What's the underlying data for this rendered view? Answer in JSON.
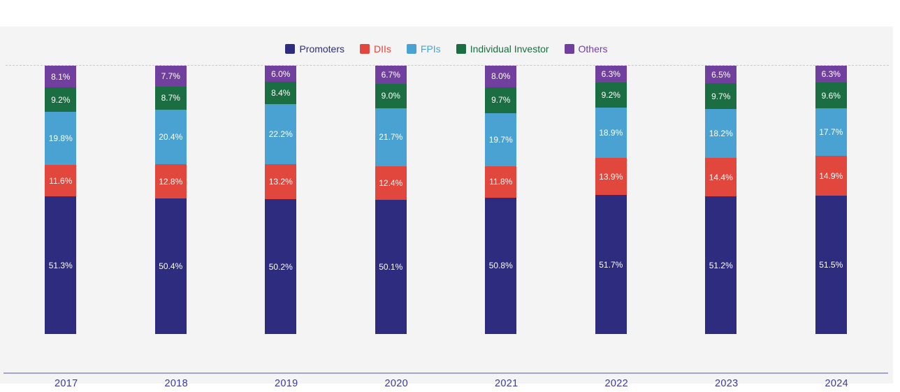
{
  "page": {
    "background": "#ffffff"
  },
  "chart": {
    "background": "#f4f4f5",
    "legend": {
      "position": "top-center",
      "items": [
        {
          "label": "Promoters",
          "color": "#2e2c7e"
        },
        {
          "label": "DIIs",
          "color": "#e2473d"
        },
        {
          "label": "FPIs",
          "color": "#4aa2d3"
        },
        {
          "label": "Individual Investor",
          "color": "#1a6e41"
        },
        {
          "label": "Others",
          "color": "#71409e"
        }
      ]
    },
    "axis": {
      "line_color": "#a5a3d2",
      "tick_label_color": "#3c3a96",
      "gridline_color": "#c8c8c8",
      "bar_label_color": "#ffffff"
    }
  },
  "chart_data": {
    "type": "bar",
    "stacked": true,
    "title": "",
    "xlabel": "",
    "ylabel": "",
    "value_suffix": "%",
    "ylim": [
      0,
      100
    ],
    "grid": "single dashed gridline at 100%",
    "legend_position": "top",
    "categories": [
      "2017",
      "2018",
      "2019",
      "2020",
      "2021",
      "2022",
      "2023",
      "2024"
    ],
    "series": [
      {
        "name": "Promoters",
        "color": "#2e2c7e",
        "values": [
          51.3,
          50.4,
          50.2,
          50.1,
          50.8,
          51.7,
          51.2,
          51.5
        ]
      },
      {
        "name": "DIIs",
        "color": "#e2473d",
        "values": [
          11.6,
          12.8,
          13.2,
          12.4,
          11.8,
          13.9,
          14.4,
          14.9
        ]
      },
      {
        "name": "FPIs",
        "color": "#4aa2d3",
        "values": [
          19.8,
          20.4,
          22.2,
          21.7,
          19.7,
          18.9,
          18.2,
          17.7
        ]
      },
      {
        "name": "Individual Investor",
        "color": "#1a6e41",
        "values": [
          9.2,
          8.7,
          8.4,
          9.0,
          9.7,
          9.2,
          9.7,
          9.6
        ]
      },
      {
        "name": "Others",
        "color": "#71409e",
        "values": [
          8.1,
          7.7,
          6.0,
          6.7,
          8.0,
          6.3,
          6.5,
          6.3
        ]
      }
    ]
  }
}
